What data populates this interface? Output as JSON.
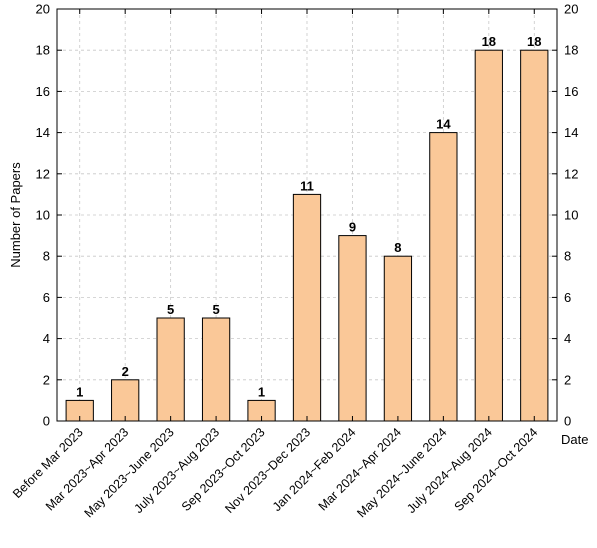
{
  "chart_data": {
    "type": "bar",
    "categories": [
      "Before Mar 2023",
      "Mar 2023~Apr 2023",
      "May 2023~June 2023",
      "July 2023~Aug 2023",
      "Sep 2023~Oct 2023",
      "Nov 2023~Dec 2023",
      "Jan 2024~Feb 2024",
      "Mar 2024~Apr 2024",
      "May 2024~June 2024",
      "July 2024~Aug 2024",
      "Sep 2024~Oct 2024"
    ],
    "values": [
      1,
      2,
      5,
      5,
      1,
      11,
      9,
      8,
      14,
      18,
      18
    ],
    "ylabel": "Number of Papers",
    "xlabel": "Date",
    "ylim": [
      0,
      20
    ],
    "yticks": [
      0,
      2,
      4,
      6,
      8,
      10,
      12,
      14,
      16,
      18,
      20
    ],
    "grid": true,
    "bar_color": "#fac898",
    "data_labels": true,
    "right_axis_ticks": true
  }
}
